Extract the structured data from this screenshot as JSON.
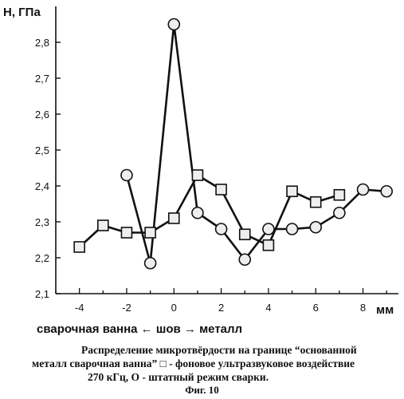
{
  "chart_data": {
    "type": "line",
    "ylabel": "H, ГПа",
    "xlabel": "сварочная ванна ← шов → металл",
    "x_unit": "мм",
    "xlim": [
      -5,
      9.5
    ],
    "ylim": [
      2.1,
      2.9
    ],
    "x_ticks": [
      -4,
      -2,
      0,
      2,
      4,
      6,
      8
    ],
    "x_tick_labels": [
      "-4",
      "-2",
      "0",
      "2",
      "4",
      "6",
      "8"
    ],
    "y_ticks": [
      2.1,
      2.2,
      2.3,
      2.4,
      2.5,
      2.6,
      2.7,
      2.8
    ],
    "y_tick_labels": [
      "2,1",
      "2,2",
      "2,3",
      "2,4",
      "2,5",
      "2,6",
      "2,7",
      "2,8"
    ],
    "grid": false,
    "series": [
      {
        "marker": "square",
        "x": [
          -4,
          -3,
          -2,
          -1,
          0,
          1,
          2,
          3,
          4,
          5,
          6,
          7
        ],
        "y": [
          2.23,
          2.29,
          2.27,
          2.27,
          2.31,
          2.43,
          2.39,
          2.265,
          2.235,
          2.385,
          2.355,
          2.375
        ]
      },
      {
        "marker": "circle",
        "x": [
          -2,
          -1,
          0,
          1,
          2,
          3,
          4,
          5,
          6,
          7,
          8,
          9
        ],
        "y": [
          2.43,
          2.185,
          2.85,
          2.325,
          2.28,
          2.195,
          2.28,
          2.28,
          2.285,
          2.325,
          2.39,
          2.385
        ]
      }
    ]
  },
  "caption": {
    "line1": "Распределение микротвёрдости на границе “основанной",
    "line2": "металл сварочная ванна” □ - фоновое ультразвуковое воздействие",
    "line3": "270 кГц, О - штатный режим сварки."
  },
  "figure_label": "Фиг. 10"
}
